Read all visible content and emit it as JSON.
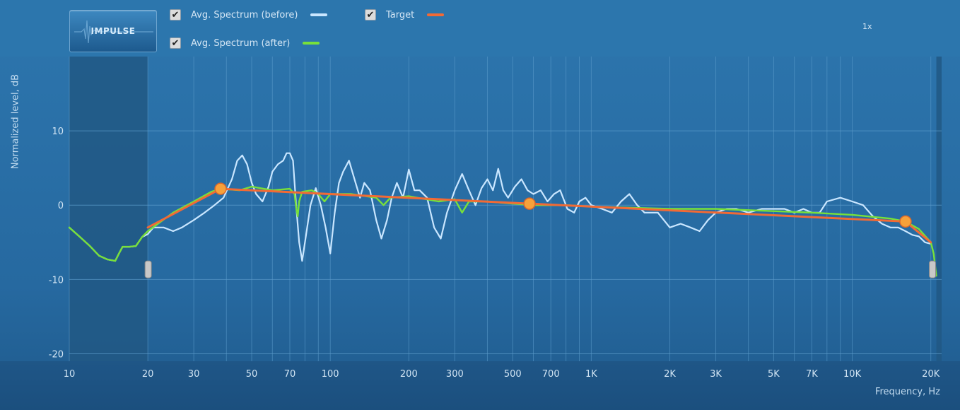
{
  "impulse_button": {
    "label": "IMPULSE"
  },
  "legend": [
    {
      "label": "Avg. Spectrum (before)",
      "checked": true,
      "color": "#c9e6ff"
    },
    {
      "label": "Target",
      "checked": true,
      "color": "#f26a35"
    },
    {
      "label": "Avg. Spectrum (after)",
      "checked": true,
      "color": "#78e03a"
    }
  ],
  "zoom_label": "1x",
  "colors": {
    "background": "#2a71a8",
    "masked_region": "#215884",
    "grid": "#5d9dcc",
    "before": "#c9e6ff",
    "after": "#78e03a",
    "target": "#f26a35",
    "target_point": "#f7a13a"
  },
  "chart_data": {
    "type": "line",
    "title": "",
    "xlabel": "Frequency, Hz",
    "ylabel": "Normalized level, dB",
    "x_scale": "log",
    "xlim": [
      10,
      22000
    ],
    "ylim": [
      -21,
      20
    ],
    "x_ticks": [
      {
        "value": 10,
        "label": "10"
      },
      {
        "value": 20,
        "label": "20"
      },
      {
        "value": 30,
        "label": "30"
      },
      {
        "value": 50,
        "label": "50"
      },
      {
        "value": 70,
        "label": "70"
      },
      {
        "value": 100,
        "label": "100"
      },
      {
        "value": 200,
        "label": "200"
      },
      {
        "value": 300,
        "label": "300"
      },
      {
        "value": 500,
        "label": "500"
      },
      {
        "value": 700,
        "label": "700"
      },
      {
        "value": 1000,
        "label": "1K"
      },
      {
        "value": 2000,
        "label": "2K"
      },
      {
        "value": 3000,
        "label": "3K"
      },
      {
        "value": 5000,
        "label": "5K"
      },
      {
        "value": 7000,
        "label": "7K"
      },
      {
        "value": 10000,
        "label": "10K"
      },
      {
        "value": 20000,
        "label": "20K"
      }
    ],
    "y_ticks": [
      {
        "value": 10,
        "label": "10"
      },
      {
        "value": 0,
        "label": "0"
      },
      {
        "value": -10,
        "label": "-10"
      },
      {
        "value": -20,
        "label": "-20"
      }
    ],
    "grid": true,
    "masked_below_hz": 20,
    "masked_above_hz": 21000,
    "series": [
      {
        "name": "Avg. Spectrum (before)",
        "points": [
          [
            10,
            -3
          ],
          [
            11,
            -4.3
          ],
          [
            12,
            -5.5
          ],
          [
            13,
            -6.8
          ],
          [
            14,
            -7.3
          ],
          [
            15,
            -7.5
          ],
          [
            15.5,
            -6.5
          ],
          [
            16,
            -5.6
          ],
          [
            17,
            -5.6
          ],
          [
            18,
            -5.5
          ],
          [
            19,
            -4.3
          ],
          [
            20,
            -3.9
          ],
          [
            21,
            -3
          ],
          [
            23,
            -3
          ],
          [
            25,
            -3.5
          ],
          [
            27,
            -3
          ],
          [
            30,
            -2
          ],
          [
            33,
            -1
          ],
          [
            36,
            0
          ],
          [
            39,
            1
          ],
          [
            42,
            3.5
          ],
          [
            44,
            6
          ],
          [
            46,
            6.7
          ],
          [
            48,
            5.5
          ],
          [
            50,
            3
          ],
          [
            52,
            1.5
          ],
          [
            55,
            0.5
          ],
          [
            58,
            2.5
          ],
          [
            60,
            4.5
          ],
          [
            63,
            5.5
          ],
          [
            66,
            6
          ],
          [
            68,
            7
          ],
          [
            70,
            7
          ],
          [
            72,
            6
          ],
          [
            74,
            0
          ],
          [
            76,
            -5
          ],
          [
            78,
            -7.5
          ],
          [
            80,
            -5
          ],
          [
            84,
            0
          ],
          [
            88,
            2.3
          ],
          [
            92,
            0
          ],
          [
            96,
            -3
          ],
          [
            100,
            -6.5
          ],
          [
            104,
            -1
          ],
          [
            108,
            3
          ],
          [
            112,
            4.5
          ],
          [
            118,
            6
          ],
          [
            125,
            3
          ],
          [
            130,
            1
          ],
          [
            135,
            3
          ],
          [
            142,
            2
          ],
          [
            150,
            -2
          ],
          [
            157,
            -4.5
          ],
          [
            165,
            -2
          ],
          [
            172,
            1
          ],
          [
            180,
            3
          ],
          [
            190,
            1
          ],
          [
            200,
            4.8
          ],
          [
            210,
            2
          ],
          [
            220,
            2
          ],
          [
            235,
            1
          ],
          [
            250,
            -3
          ],
          [
            265,
            -4.5
          ],
          [
            280,
            -1
          ],
          [
            300,
            2
          ],
          [
            320,
            4.2
          ],
          [
            340,
            2
          ],
          [
            360,
            0
          ],
          [
            380,
            2.3
          ],
          [
            400,
            3.5
          ],
          [
            420,
            2
          ],
          [
            440,
            4.9
          ],
          [
            460,
            2
          ],
          [
            480,
            1
          ],
          [
            510,
            2.5
          ],
          [
            540,
            3.5
          ],
          [
            570,
            2
          ],
          [
            600,
            1.5
          ],
          [
            640,
            2
          ],
          [
            680,
            0.5
          ],
          [
            720,
            1.5
          ],
          [
            760,
            2
          ],
          [
            810,
            -0.5
          ],
          [
            860,
            -1
          ],
          [
            900,
            0.5
          ],
          [
            950,
            1
          ],
          [
            1000,
            0
          ],
          [
            1100,
            -0.5
          ],
          [
            1200,
            -1
          ],
          [
            1300,
            0.5
          ],
          [
            1400,
            1.5
          ],
          [
            1500,
            0
          ],
          [
            1600,
            -1
          ],
          [
            1800,
            -1
          ],
          [
            2000,
            -3
          ],
          [
            2200,
            -2.5
          ],
          [
            2400,
            -3
          ],
          [
            2600,
            -3.5
          ],
          [
            2800,
            -2
          ],
          [
            3000,
            -1
          ],
          [
            3300,
            -0.5
          ],
          [
            3600,
            -0.5
          ],
          [
            4000,
            -1
          ],
          [
            4500,
            -0.5
          ],
          [
            5000,
            -0.5
          ],
          [
            5500,
            -0.5
          ],
          [
            6000,
            -1
          ],
          [
            6500,
            -0.5
          ],
          [
            7000,
            -1
          ],
          [
            7500,
            -1
          ],
          [
            8000,
            0.5
          ],
          [
            9000,
            1
          ],
          [
            10000,
            0.5
          ],
          [
            11000,
            0
          ],
          [
            12000,
            -1.5
          ],
          [
            13000,
            -2.5
          ],
          [
            14000,
            -3
          ],
          [
            15000,
            -3
          ],
          [
            16000,
            -3.5
          ],
          [
            17000,
            -4
          ],
          [
            18000,
            -4.2
          ],
          [
            19000,
            -5
          ],
          [
            20000,
            -5.2
          ]
        ]
      },
      {
        "name": "Avg. Spectrum (after)",
        "points": [
          [
            10,
            -3
          ],
          [
            11,
            -4.3
          ],
          [
            12,
            -5.5
          ],
          [
            13,
            -6.8
          ],
          [
            14,
            -7.3
          ],
          [
            15,
            -7.5
          ],
          [
            15.5,
            -6.5
          ],
          [
            16,
            -5.6
          ],
          [
            17,
            -5.6
          ],
          [
            18,
            -5.5
          ],
          [
            19,
            -4.3
          ],
          [
            20,
            -3.5
          ],
          [
            25,
            -1
          ],
          [
            30,
            0.5
          ],
          [
            35,
            1.8
          ],
          [
            38,
            2.2
          ],
          [
            45,
            2
          ],
          [
            50,
            2.5
          ],
          [
            60,
            2
          ],
          [
            70,
            2.2
          ],
          [
            73,
            1.5
          ],
          [
            74,
            -0.3
          ],
          [
            75,
            -1.5
          ],
          [
            76,
            0.5
          ],
          [
            78,
            1.8
          ],
          [
            85,
            2
          ],
          [
            90,
            1.5
          ],
          [
            95,
            0.5
          ],
          [
            100,
            1.5
          ],
          [
            120,
            1.5
          ],
          [
            150,
            1
          ],
          [
            160,
            0
          ],
          [
            170,
            1
          ],
          [
            200,
            1.2
          ],
          [
            260,
            0.5
          ],
          [
            300,
            0.8
          ],
          [
            320,
            -1
          ],
          [
            340,
            0.5
          ],
          [
            400,
            0.5
          ],
          [
            500,
            0.2
          ],
          [
            600,
            0
          ],
          [
            800,
            0
          ],
          [
            1000,
            -0.2
          ],
          [
            2000,
            -0.5
          ],
          [
            3000,
            -0.5
          ],
          [
            5000,
            -0.8
          ],
          [
            7000,
            -1
          ],
          [
            10000,
            -1.3
          ],
          [
            14000,
            -1.8
          ],
          [
            16000,
            -2.2
          ],
          [
            18000,
            -3.2
          ],
          [
            20000,
            -5
          ],
          [
            20500,
            -6.5
          ],
          [
            21000,
            -9.5
          ]
        ]
      },
      {
        "name": "Target",
        "points": [
          [
            20,
            -3
          ],
          [
            38,
            2.2
          ],
          [
            580,
            0.2
          ],
          [
            16000,
            -2.2
          ],
          [
            20000,
            -5
          ]
        ],
        "control_points": [
          [
            38,
            2.2
          ],
          [
            580,
            0.2
          ],
          [
            16000,
            -2.2
          ]
        ]
      }
    ]
  }
}
